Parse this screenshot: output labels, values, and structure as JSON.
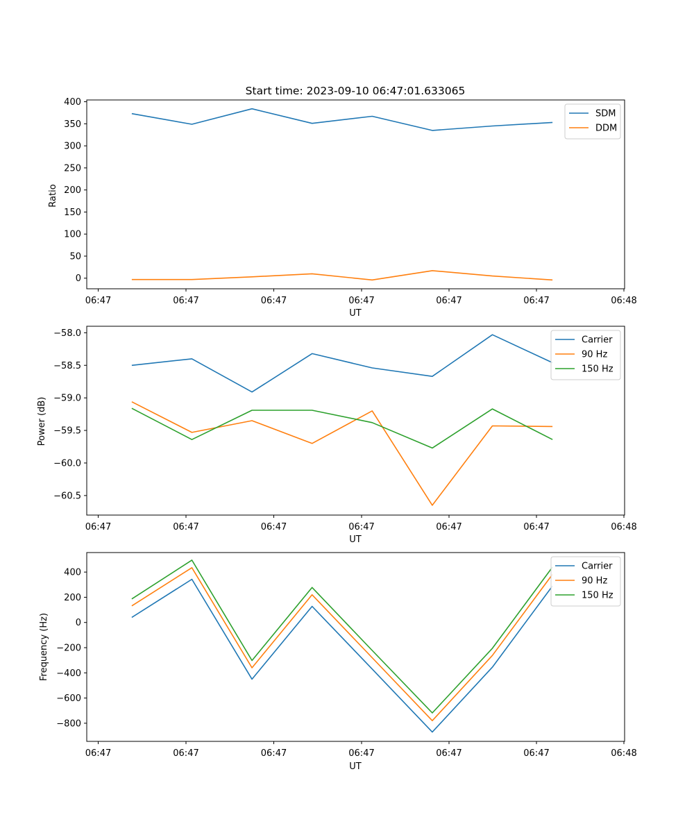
{
  "chart_data": [
    {
      "type": "line",
      "title": "Start time: 2023-09-10 06:47:01.633065",
      "xlabel": "UT",
      "ylabel": "Ratio",
      "x_tick_labels": [
        "06:47",
        "06:47",
        "06:47",
        "06:47",
        "06:47",
        "06:47",
        "06:48"
      ],
      "x": [
        1,
        2,
        3,
        4,
        5,
        6,
        7,
        8
      ],
      "xlim": [
        0.25,
        9.2
      ],
      "ylim": [
        -24,
        404
      ],
      "y_ticks": [
        0,
        50,
        100,
        150,
        200,
        250,
        300,
        350,
        400
      ],
      "y_tick_labels": [
        "0",
        "50",
        "100",
        "150",
        "200",
        "250",
        "300",
        "350",
        "400"
      ],
      "grid": false,
      "legend_position": "top-right",
      "series": [
        {
          "name": "SDM",
          "color": "#1f77b4",
          "values": [
            373,
            349,
            384,
            351,
            367,
            335,
            345,
            353
          ]
        },
        {
          "name": "DDM",
          "color": "#ff7f0e",
          "values": [
            -3,
            -3,
            3,
            10,
            -4,
            17,
            5,
            -4
          ]
        }
      ]
    },
    {
      "type": "line",
      "title": "",
      "xlabel": "UT",
      "ylabel": "Power (dB)",
      "x_tick_labels": [
        "06:47",
        "06:47",
        "06:47",
        "06:47",
        "06:47",
        "06:47",
        "06:48"
      ],
      "x": [
        1,
        2,
        3,
        4,
        5,
        6,
        7,
        8
      ],
      "xlim": [
        0.25,
        9.2
      ],
      "ylim": [
        -60.8,
        -57.9
      ],
      "y_ticks": [
        -60.5,
        -60.0,
        -59.5,
        -59.0,
        -58.5,
        -58.0
      ],
      "y_tick_labels": [
        "−60.5",
        "−60.0",
        "−59.5",
        "−59.0",
        "−58.5",
        "−58.0"
      ],
      "grid": false,
      "legend_position": "top-right",
      "series": [
        {
          "name": "Carrier",
          "color": "#1f77b4",
          "values": [
            -58.5,
            -58.4,
            -58.91,
            -58.32,
            -58.54,
            -58.67,
            -58.03,
            -58.46
          ]
        },
        {
          "name": "90 Hz",
          "color": "#ff7f0e",
          "values": [
            -59.06,
            -59.53,
            -59.35,
            -59.7,
            -59.2,
            -60.65,
            -59.43,
            -59.44
          ]
        },
        {
          "name": "150 Hz",
          "color": "#2ca02c",
          "values": [
            -59.16,
            -59.64,
            -59.19,
            -59.19,
            -59.38,
            -59.77,
            -59.17,
            -59.64
          ]
        }
      ]
    },
    {
      "type": "line",
      "title": "",
      "xlabel": "UT",
      "ylabel": "Frequency (Hz)",
      "x_tick_labels": [
        "06:47",
        "06:47",
        "06:47",
        "06:47",
        "06:47",
        "06:47",
        "06:48"
      ],
      "x": [
        1,
        2,
        3,
        4,
        5,
        6,
        7,
        8
      ],
      "xlim": [
        0.25,
        9.2
      ],
      "ylim": [
        -944,
        555
      ],
      "y_ticks": [
        -800,
        -600,
        -400,
        -200,
        0,
        200,
        400
      ],
      "y_tick_labels": [
        "−800",
        "−600",
        "−400",
        "−200",
        "0",
        "200",
        "400"
      ],
      "grid": false,
      "legend_position": "top-right",
      "series": [
        {
          "name": "Carrier",
          "color": "#1f77b4",
          "values": [
            40,
            343,
            -450,
            128,
            -370,
            -870,
            -355,
            290
          ]
        },
        {
          "name": "90 Hz",
          "color": "#ff7f0e",
          "values": [
            132,
            435,
            -360,
            220,
            -280,
            -780,
            -262,
            382
          ]
        },
        {
          "name": "150 Hz",
          "color": "#2ca02c",
          "values": [
            187,
            495,
            -302,
            278,
            -222,
            -718,
            -205,
            440
          ]
        }
      ]
    }
  ]
}
